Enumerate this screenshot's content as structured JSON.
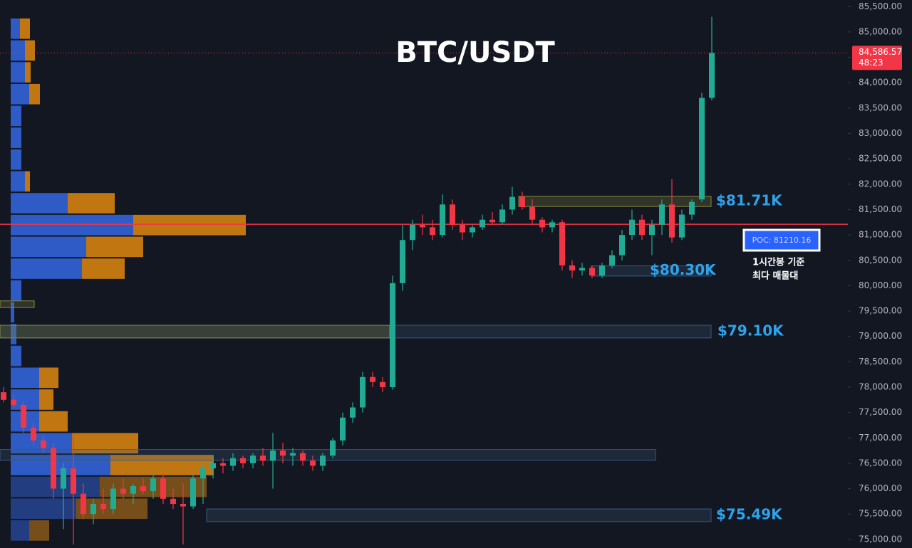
{
  "chart_data": {
    "type": "candlestick",
    "title": "BTC/USDT",
    "ylim": [
      74830,
      85630
    ],
    "yticks": [
      {
        "value": 75000,
        "label": "75,000.00"
      },
      {
        "value": 75500,
        "label": "75,500.00"
      },
      {
        "value": 76000,
        "label": "76,000.00"
      },
      {
        "value": 76500,
        "label": "76,500.00"
      },
      {
        "value": 77000,
        "label": "77,000.00"
      },
      {
        "value": 77500,
        "label": "77,500.00"
      },
      {
        "value": 78000,
        "label": "78,000.00"
      },
      {
        "value": 78500,
        "label": "78,500.00"
      },
      {
        "value": 79000,
        "label": "79,000.00"
      },
      {
        "value": 79500,
        "label": "79,500.00"
      },
      {
        "value": 80000,
        "label": "80,000.00"
      },
      {
        "value": 80500,
        "label": "80,500.00"
      },
      {
        "value": 81000,
        "label": "81,000.00"
      },
      {
        "value": 81500,
        "label": "81,500.00"
      },
      {
        "value": 82000,
        "label": "82,000.00"
      },
      {
        "value": 82500,
        "label": "82,500.00"
      },
      {
        "value": 83000,
        "label": "83,000.00"
      },
      {
        "value": 83500,
        "label": "83,500.00"
      },
      {
        "value": 84000,
        "label": "84,000.00"
      },
      {
        "value": 84500,
        "label": "84,500.00"
      },
      {
        "value": 85000,
        "label": "85,000.00"
      },
      {
        "value": 85500,
        "label": "85,500.00"
      }
    ],
    "up_color": "#22ab94",
    "down_color": "#f23645",
    "candles": [
      [
        77900,
        78000,
        77700,
        77750
      ],
      [
        77750,
        77850,
        77600,
        77650
      ],
      [
        77650,
        77700,
        77100,
        77200
      ],
      [
        77200,
        77300,
        76850,
        76950
      ],
      [
        76950,
        77050,
        76700,
        76800
      ],
      [
        76800,
        76900,
        75800,
        76000
      ],
      [
        76000,
        76500,
        75200,
        76400
      ],
      [
        76400,
        77100,
        74900,
        75900
      ],
      [
        75900,
        76100,
        75400,
        75500
      ],
      [
        75500,
        75800,
        75300,
        75700
      ],
      [
        75700,
        76000,
        75500,
        75600
      ],
      [
        75600,
        76100,
        75500,
        76000
      ],
      [
        76000,
        76200,
        75800,
        75900
      ],
      [
        75900,
        76100,
        75700,
        76050
      ],
      [
        76050,
        76200,
        75900,
        75950
      ],
      [
        75950,
        76300,
        75800,
        76200
      ],
      [
        76200,
        76300,
        75700,
        75800
      ],
      [
        75800,
        76000,
        75600,
        75700
      ],
      [
        75700,
        76100,
        74900,
        75650
      ],
      [
        75650,
        76300,
        75600,
        76200
      ],
      [
        76200,
        76500,
        75700,
        76400
      ],
      [
        76400,
        76600,
        76200,
        76500
      ],
      [
        76500,
        76600,
        76300,
        76450
      ],
      [
        76450,
        76700,
        76350,
        76600
      ],
      [
        76600,
        76650,
        76400,
        76500
      ],
      [
        76500,
        76700,
        76400,
        76650
      ],
      [
        76650,
        76800,
        76450,
        76550
      ],
      [
        76550,
        77100,
        76000,
        76750
      ],
      [
        76750,
        76900,
        76500,
        76650
      ],
      [
        76650,
        76800,
        76450,
        76700
      ],
      [
        76700,
        76750,
        76450,
        76550
      ],
      [
        76550,
        76650,
        76350,
        76450
      ],
      [
        76450,
        76700,
        76350,
        76650
      ],
      [
        76650,
        77000,
        76600,
        76950
      ],
      [
        76950,
        77500,
        76850,
        77400
      ],
      [
        77400,
        77700,
        77300,
        77600
      ],
      [
        77600,
        78300,
        77500,
        78200
      ],
      [
        78200,
        78300,
        78000,
        78100
      ],
      [
        78100,
        78200,
        77900,
        78000
      ],
      [
        78000,
        80200,
        77950,
        80050
      ],
      [
        80050,
        81200,
        79900,
        80900
      ],
      [
        80900,
        81300,
        80700,
        81200
      ],
      [
        81200,
        81400,
        81000,
        81150
      ],
      [
        81150,
        81300,
        80900,
        81000
      ],
      [
        81000,
        81800,
        80950,
        81600
      ],
      [
        81600,
        81700,
        81100,
        81200
      ],
      [
        81200,
        81300,
        80900,
        81050
      ],
      [
        81050,
        81200,
        80950,
        81150
      ],
      [
        81150,
        81400,
        81100,
        81300
      ],
      [
        81300,
        81450,
        81200,
        81250
      ],
      [
        81250,
        81600,
        81200,
        81500
      ],
      [
        81500,
        81950,
        81400,
        81750
      ],
      [
        81750,
        81850,
        81500,
        81550
      ],
      [
        81550,
        81700,
        81200,
        81300
      ],
      [
        81300,
        81350,
        81050,
        81150
      ],
      [
        81150,
        81300,
        81050,
        81250
      ],
      [
        81250,
        81300,
        80300,
        80400
      ],
      [
        80400,
        80500,
        80150,
        80300
      ],
      [
        80300,
        80450,
        80200,
        80350
      ],
      [
        80350,
        80400,
        80150,
        80200
      ],
      [
        80200,
        80450,
        80150,
        80400
      ],
      [
        80400,
        80700,
        80350,
        80600
      ],
      [
        80600,
        81100,
        80500,
        81000
      ],
      [
        81000,
        81500,
        80900,
        81300
      ],
      [
        81300,
        81400,
        80900,
        81000
      ],
      [
        81000,
        81300,
        80600,
        81200
      ],
      [
        81200,
        81700,
        81000,
        81600
      ],
      [
        81600,
        82100,
        80850,
        80950
      ],
      [
        80950,
        81500,
        80900,
        81400
      ],
      [
        81400,
        81700,
        81300,
        81650
      ],
      [
        81700,
        83800,
        81650,
        83700
      ],
      [
        83700,
        85300,
        83650,
        84586.57
      ]
    ],
    "volume_profile": {
      "bin_edges": [
        85280,
        84850,
        84420,
        83990,
        83560,
        83130,
        82700,
        82270,
        81840,
        81410,
        80980,
        80550,
        80120,
        79690,
        79260,
        78830,
        78400,
        77970,
        77540,
        77110,
        76680,
        76250,
        75820,
        75390,
        74960
      ],
      "up_volume": [
        13,
        20,
        20,
        26,
        15,
        15,
        15,
        20,
        80,
        172,
        106,
        100,
        15,
        5,
        8,
        15,
        40,
        40,
        40,
        86,
        140,
        125,
        92,
        26
      ],
      "down_volume": [
        14,
        14,
        8,
        15,
        0,
        0,
        0,
        7,
        66,
        158,
        80,
        60,
        0,
        0,
        0,
        0,
        27,
        20,
        40,
        93,
        145,
        150,
        100,
        28
      ],
      "up_color": "#2f5fd0",
      "down_color": "#c97c12"
    },
    "zones": [
      {
        "label": "$81.71K",
        "top": 81760,
        "bottom": 81560,
        "color": "#8a8a3c"
      },
      {
        "label": "$80.30K",
        "top": 80390,
        "bottom": 80190,
        "color": "#3a5a80"
      },
      {
        "label": "$79.10K",
        "top": 79220,
        "bottom": 78970,
        "color": "#3a5a80"
      },
      {
        "top": 79220,
        "bottom": 78970,
        "color": "#8a8a3c"
      },
      {
        "top": 76770,
        "bottom": 76560,
        "color": "#3a5a80"
      },
      {
        "label": "$75.49K",
        "top": 75600,
        "bottom": 75350,
        "color": "#3a5a80"
      },
      {
        "top": 79700,
        "bottom": 79570,
        "color": "#8a8a3c"
      }
    ],
    "label_color": "#2ea3ec",
    "poc": {
      "value": 81210.16,
      "label": "POC: 81210.16",
      "color": "#f23645"
    },
    "poc_note": [
      "1시간봉 기준",
      "최다 매물대"
    ],
    "last_price": {
      "value": 84586.57,
      "label": "84,586.57"
    },
    "countdown": "48:23"
  }
}
